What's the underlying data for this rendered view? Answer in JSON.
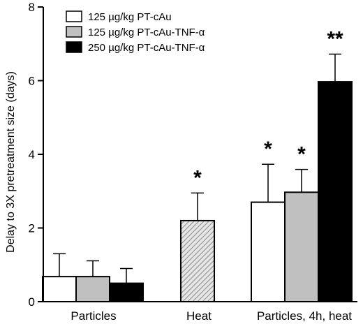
{
  "chart_data": {
    "type": "bar",
    "ylabel": "Delay to 3X pretreatment size (days)",
    "ylim": [
      0,
      8
    ],
    "yticks": [
      0,
      2,
      4,
      6,
      8
    ],
    "categories": [
      "Particles",
      "Heat",
      "Particles, 4h, heat"
    ],
    "series": [
      {
        "name": "125 µg/kg PT-cAu",
        "color": "#ffffff",
        "pattern": "solid-white"
      },
      {
        "name": "125 µg/kg PT-cAu-TNF-α",
        "color": "#c0c0c0",
        "pattern": "solid-gray"
      },
      {
        "name": "250 µg/kg PT-cAu-TNF-α",
        "color": "#000000",
        "pattern": "solid-black"
      }
    ],
    "bars": [
      {
        "category": "Particles",
        "series": "125 µg/kg PT-cAu",
        "value": 0.68,
        "error": 0.62,
        "fill": "white",
        "annotation": ""
      },
      {
        "category": "Particles",
        "series": "125 µg/kg PT-cAu-TNF-α",
        "value": 0.68,
        "error": 0.43,
        "fill": "gray",
        "annotation": ""
      },
      {
        "category": "Particles",
        "series": "250 µg/kg PT-cAu-TNF-α",
        "value": 0.5,
        "error": 0.4,
        "fill": "black",
        "annotation": ""
      },
      {
        "category": "Heat",
        "series": "",
        "value": 2.2,
        "error": 0.75,
        "fill": "hatch",
        "annotation": "*"
      },
      {
        "category": "Particles, 4h, heat",
        "series": "125 µg/kg PT-cAu",
        "value": 2.7,
        "error": 1.03,
        "fill": "white",
        "annotation": "*"
      },
      {
        "category": "Particles, 4h, heat",
        "series": "125 µg/kg PT-cAu-TNF-α",
        "value": 2.97,
        "error": 0.62,
        "fill": "gray",
        "annotation": "*"
      },
      {
        "category": "Particles, 4h, heat",
        "series": "250 µg/kg PT-cAu-TNF-α",
        "value": 5.97,
        "error": 0.75,
        "fill": "black",
        "annotation": "**"
      }
    ],
    "legend_position": "top-left",
    "grid": false
  }
}
